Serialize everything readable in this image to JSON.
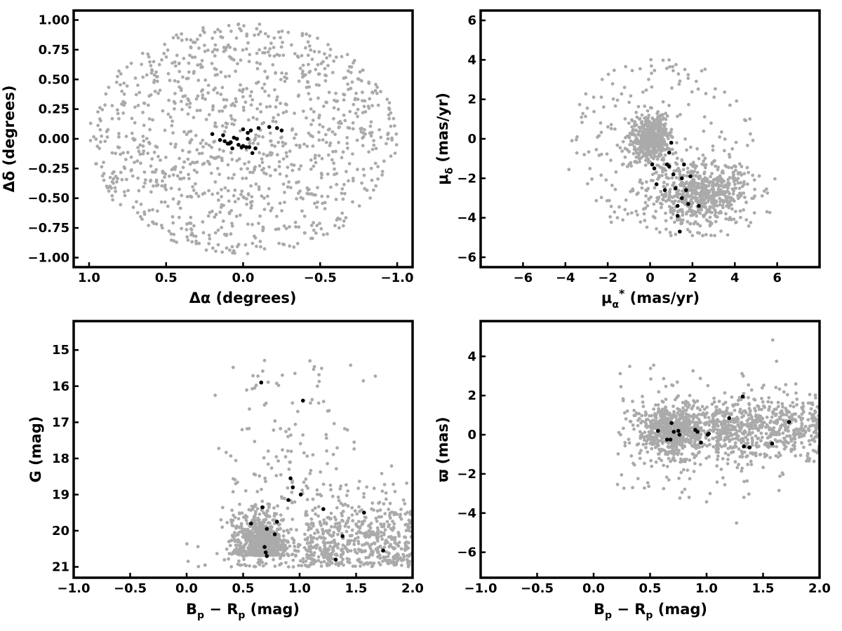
{
  "colors": {
    "field": "#aaaaaa",
    "members": "#000000"
  },
  "chart_data": [
    {
      "type": "scatter",
      "id": "position",
      "xlabel": "Δα (degrees)",
      "ylabel": "Δδ (degrees)",
      "xlim": [
        1.1,
        -1.1
      ],
      "ylim": [
        -1.08,
        1.08
      ],
      "x_inverted": true,
      "xticks": [
        1.0,
        0.5,
        0.0,
        -0.5,
        -1.0
      ],
      "xtick_labels": [
        "1.0",
        "0.5",
        "0.0",
        "−0.5",
        "−1.0"
      ],
      "yticks": [
        1.0,
        0.75,
        0.5,
        0.25,
        0.0,
        -0.25,
        -0.5,
        -0.75,
        -1.0
      ],
      "ytick_labels": [
        "1.00",
        "0.75",
        "0.50",
        "0.25",
        "0.00",
        "−0.25",
        "−0.50",
        "−0.75",
        "−1.00"
      ],
      "grid": false,
      "field_distribution": {
        "shape": "uniform_ellipse",
        "x_radius": 1.0,
        "y_radius": 0.97,
        "center": [
          0,
          0
        ],
        "approx_count": 1100
      },
      "members": {
        "x": [
          0.2,
          0.13,
          0.08,
          0.06,
          0.04,
          0.03,
          0.01,
          0.0,
          -0.02,
          -0.04,
          -0.06,
          -0.08,
          0.1,
          0.07,
          0.12,
          -0.0,
          -0.03,
          -0.05,
          -0.1,
          -0.17,
          -0.22,
          -0.25,
          0.15,
          0.09,
          -0.03
        ],
        "y": [
          0.04,
          0.03,
          -0.03,
          0.01,
          0.0,
          -0.05,
          -0.07,
          -0.06,
          -0.07,
          -0.07,
          -0.12,
          -0.08,
          -0.04,
          -0.08,
          -0.02,
          0.08,
          0.05,
          0.07,
          0.09,
          0.1,
          0.09,
          0.07,
          -0.01,
          -0.04,
          0.0
        ]
      }
    },
    {
      "type": "scatter",
      "id": "proper-motion",
      "xlabel": "μα* (mas/yr)",
      "ylabel": "μδ (mas/yr)",
      "xlim": [
        -8,
        8
      ],
      "ylim": [
        -6.5,
        6.5
      ],
      "xticks": [
        -6,
        -4,
        -2,
        0,
        2,
        4,
        6
      ],
      "xtick_labels": [
        "−6",
        "−4",
        "−2",
        "0",
        "2",
        "4",
        "6"
      ],
      "yticks": [
        6,
        4,
        2,
        0,
        -2,
        -4,
        -6
      ],
      "ytick_labels": [
        "6",
        "4",
        "2",
        "0",
        "−2",
        "−4",
        "−6"
      ],
      "grid": false,
      "field_distribution": {
        "shape": "disk_with_clumps",
        "center": [
          0.5,
          -1.5
        ],
        "radius": 3.8,
        "clumps": [
          [
            0,
            0
          ],
          [
            2.5,
            -2.7
          ]
        ],
        "approx_count": 1300
      },
      "members": {
        "x": [
          0.1,
          0.2,
          0.3,
          0.7,
          0.8,
          0.9,
          0.9,
          1.0,
          1.2,
          1.3,
          1.4,
          1.5,
          1.5,
          1.6,
          1.7,
          1.8,
          1.9,
          2.3,
          1.3,
          1.1
        ],
        "y": [
          -1.3,
          -1.5,
          -2.3,
          -2.6,
          -1.3,
          -1.4,
          -0.7,
          -0.2,
          -2.5,
          -3.4,
          -4.7,
          -2.0,
          -3.0,
          -1.3,
          -2.6,
          -3.3,
          -1.9,
          -3.4,
          -3.9,
          -1.8
        ]
      }
    },
    {
      "type": "scatter",
      "id": "cmd",
      "xlabel": "Bp − Rp (mag)",
      "ylabel": "G (mag)",
      "xlim": [
        -1.0,
        2.0
      ],
      "ylim": [
        21.3,
        14.2
      ],
      "y_inverted": true,
      "xticks": [
        -1.0,
        -0.5,
        0.0,
        0.5,
        1.0,
        1.5,
        2.0
      ],
      "xtick_labels": [
        "−1.0",
        "−0.5",
        "0.0",
        "0.5",
        "1.0",
        "1.5",
        "2.0"
      ],
      "yticks": [
        21,
        20,
        19,
        18,
        17,
        16,
        15
      ],
      "ytick_labels": [
        "21",
        "20",
        "19",
        "18",
        "17",
        "16",
        "15"
      ],
      "grid": false,
      "field_distribution": {
        "shape": "cmd_fan",
        "concentration": [
          0.65,
          20.6
        ],
        "approx_count": 1400
      },
      "members": {
        "x": [
          0.66,
          0.7,
          0.71,
          0.69,
          0.57,
          0.71,
          0.78,
          0.8,
          0.9,
          0.92,
          0.94,
          1.01,
          1.03,
          1.21,
          1.32,
          1.38,
          1.57,
          1.74,
          0.67
        ],
        "y": [
          15.9,
          20.6,
          20.7,
          20.45,
          19.8,
          19.95,
          20.1,
          19.75,
          19.15,
          18.55,
          18.8,
          19.0,
          16.4,
          19.4,
          20.8,
          20.15,
          19.5,
          20.55,
          19.35
        ]
      }
    },
    {
      "type": "scatter",
      "id": "parallax",
      "xlabel": "Bp − Rp (mag)",
      "ylabel": "ϖ (mas)",
      "xlim": [
        -1.0,
        2.0
      ],
      "ylim": [
        -7.3,
        5.8
      ],
      "xticks": [
        -1.0,
        -0.5,
        0.0,
        0.5,
        1.0,
        1.5,
        2.0
      ],
      "xtick_labels": [
        "−1.0",
        "−0.5",
        "0.0",
        "0.5",
        "1.0",
        "1.5",
        "2.0"
      ],
      "yticks": [
        4,
        2,
        0,
        -2,
        -4,
        -6
      ],
      "ytick_labels": [
        "4",
        "2",
        "0",
        "−2",
        "−4",
        "−6"
      ],
      "grid": false,
      "field_distribution": {
        "shape": "band",
        "y_center": 0.2,
        "approx_count": 1400
      },
      "members": {
        "x": [
          0.57,
          0.65,
          0.68,
          0.69,
          0.71,
          0.75,
          0.76,
          0.9,
          0.92,
          0.95,
          1.01,
          1.02,
          1.2,
          1.32,
          1.33,
          1.38,
          1.58,
          1.73
        ],
        "y": [
          0.2,
          -0.25,
          -0.25,
          0.6,
          0.15,
          0.2,
          0.0,
          0.25,
          0.15,
          -0.4,
          0.0,
          0.05,
          0.85,
          1.95,
          -0.6,
          -0.65,
          -0.45,
          0.65
        ]
      }
    }
  ]
}
